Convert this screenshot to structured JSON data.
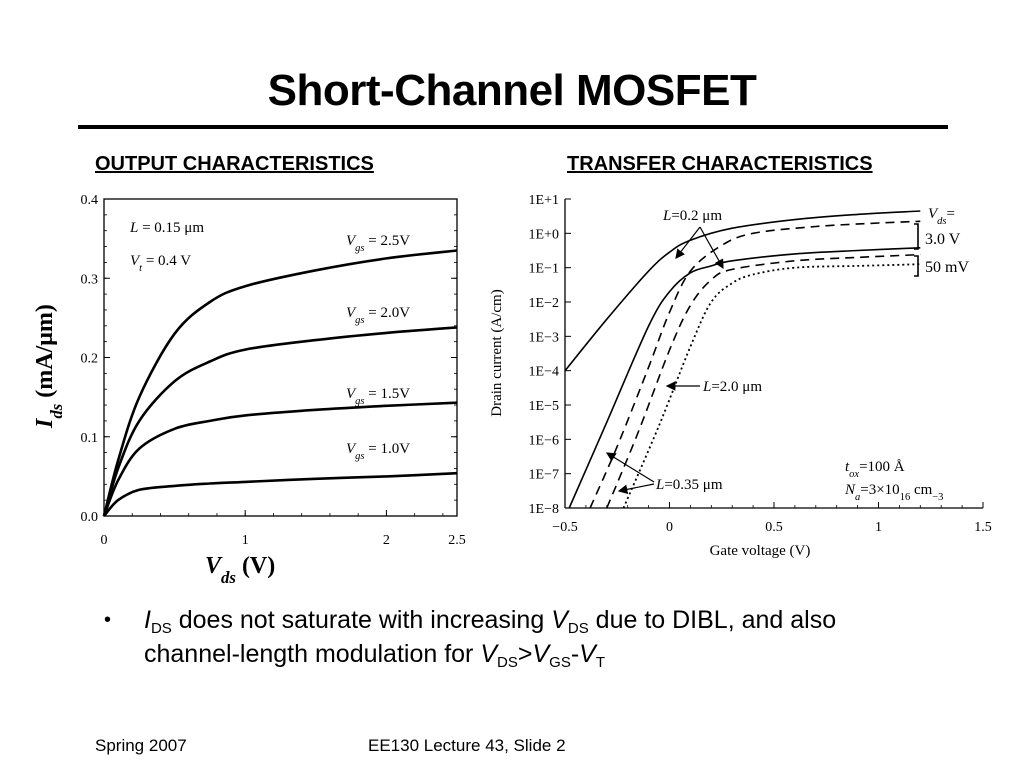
{
  "slide": {
    "title": "Short-Channel MOSFET",
    "footer_left": "Spring 2007",
    "footer_center": "EE130 Lecture 43, Slide 2"
  },
  "bullet": {
    "marker": "•",
    "parts_line1": [
      {
        "t": "I",
        "i": true
      },
      {
        "t": "DS",
        "sub": true
      },
      {
        "t": " does not saturate with increasing "
      },
      {
        "t": "V",
        "i": true
      },
      {
        "t": "DS",
        "sub": true
      },
      {
        "t": " due to DIBL, and also"
      }
    ],
    "parts_line2": [
      {
        "t": "channel-length modulation for "
      },
      {
        "t": "V",
        "i": true
      },
      {
        "t": "DS",
        "sub": true
      },
      {
        "t": ">"
      },
      {
        "t": "V",
        "i": true
      },
      {
        "t": "GS",
        "sub": true
      },
      {
        "t": "-"
      },
      {
        "t": "V",
        "i": true
      },
      {
        "t": "T",
        "sub": true
      }
    ]
  },
  "chart_data": [
    {
      "type": "line",
      "title": "OUTPUT CHARACTERISTICS",
      "xlabel": "V_ds (V)",
      "ylabel": "I_ds (mA/μm)",
      "xlim": [
        0,
        2.5
      ],
      "ylim": [
        0,
        0.4
      ],
      "x_ticks": [
        "0",
        "1",
        "2",
        "2.5"
      ],
      "y_ticks": [
        "0.0",
        "0.1",
        "0.2",
        "0.3",
        "0.4"
      ],
      "annotations": [
        "L = 0.15 μm",
        "V_t = 0.4 V"
      ],
      "x": [
        0,
        0.1,
        0.25,
        0.5,
        0.75,
        1.0,
        1.5,
        2.0,
        2.5
      ],
      "series": [
        {
          "name": "V_gs = 2.5V",
          "values": [
            0,
            0.07,
            0.15,
            0.23,
            0.27,
            0.29,
            0.31,
            0.325,
            0.335
          ]
        },
        {
          "name": "V_gs = 2.0V",
          "values": [
            0,
            0.06,
            0.12,
            0.17,
            0.195,
            0.21,
            0.222,
            0.231,
            0.238
          ]
        },
        {
          "name": "V_gs = 1.5V",
          "values": [
            0,
            0.045,
            0.085,
            0.11,
            0.12,
            0.127,
            0.134,
            0.139,
            0.143
          ]
        },
        {
          "name": "V_gs = 1.0V",
          "values": [
            0,
            0.02,
            0.033,
            0.038,
            0.041,
            0.043,
            0.047,
            0.05,
            0.054
          ]
        }
      ]
    },
    {
      "type": "line",
      "title": "TRANSFER CHARACTERISTICS",
      "xlabel": "Gate voltage (V)",
      "ylabel": "Drain current (A/cm)",
      "xlim": [
        -0.5,
        1.5
      ],
      "ylim": [
        -8,
        1
      ],
      "y_scale": "log",
      "x_ticks": [
        "−0.5",
        "0",
        "0.5",
        "1",
        "1.5"
      ],
      "y_ticks": [
        "1E−8",
        "1E−7",
        "1E−6",
        "1E−5",
        "1E−4",
        "1E−3",
        "1E−2",
        "1E−1",
        "1E+0",
        "1E+1"
      ],
      "annotations": [
        "L=0.2 μm",
        "L=2.0 μm",
        "L=0.35 μm",
        "V_ds=",
        "3.0 V",
        "50 mV",
        "t_ox=100 Å",
        "N_a=3×10^16 cm^−3"
      ],
      "series": [
        {
          "name": "L=0.2 μm, V_ds=3.0 V",
          "style": "solid",
          "x": [
            -0.5,
            -0.3,
            -0.1,
            0.0,
            0.1,
            0.3,
            0.6,
            0.9,
            1.2
          ],
          "log10_values": [
            -4.0,
            -2.5,
            -1.1,
            -0.55,
            -0.2,
            0.15,
            0.4,
            0.55,
            0.65
          ]
        },
        {
          "name": "L=0.35 μm, V_ds=3.0 V",
          "style": "dashed",
          "x": [
            -0.38,
            -0.25,
            -0.1,
            0.0,
            0.1,
            0.25,
            0.4,
            0.7,
            1.0,
            1.2
          ],
          "log10_values": [
            -8.0,
            -6.2,
            -3.9,
            -2.3,
            -1.1,
            -0.35,
            0.0,
            0.2,
            0.3,
            0.35
          ]
        },
        {
          "name": "L=0.2 μm, V_ds=50 mV",
          "style": "solid",
          "x": [
            -0.48,
            -0.3,
            -0.1,
            0.0,
            0.1,
            0.2,
            0.3,
            0.6,
            0.9,
            1.2
          ],
          "log10_values": [
            -8.0,
            -5.5,
            -2.7,
            -1.7,
            -1.15,
            -0.95,
            -0.8,
            -0.6,
            -0.5,
            -0.42
          ]
        },
        {
          "name": "L=0.35 μm, V_ds=50 mV",
          "style": "dashed",
          "x": [
            -0.3,
            -0.15,
            0.0,
            0.1,
            0.2,
            0.3,
            0.6,
            0.9,
            1.2
          ],
          "log10_values": [
            -8.0,
            -5.8,
            -3.4,
            -2.1,
            -1.35,
            -1.05,
            -0.8,
            -0.7,
            -0.62
          ]
        },
        {
          "name": "L=2.0 μm",
          "style": "dotted",
          "x": [
            -0.22,
            -0.05,
            0.1,
            0.2,
            0.3,
            0.4,
            0.6,
            0.9,
            1.2
          ],
          "log10_values": [
            -8.0,
            -5.6,
            -3.3,
            -2.0,
            -1.45,
            -1.2,
            -1.0,
            -0.95,
            -0.9
          ]
        }
      ]
    }
  ]
}
